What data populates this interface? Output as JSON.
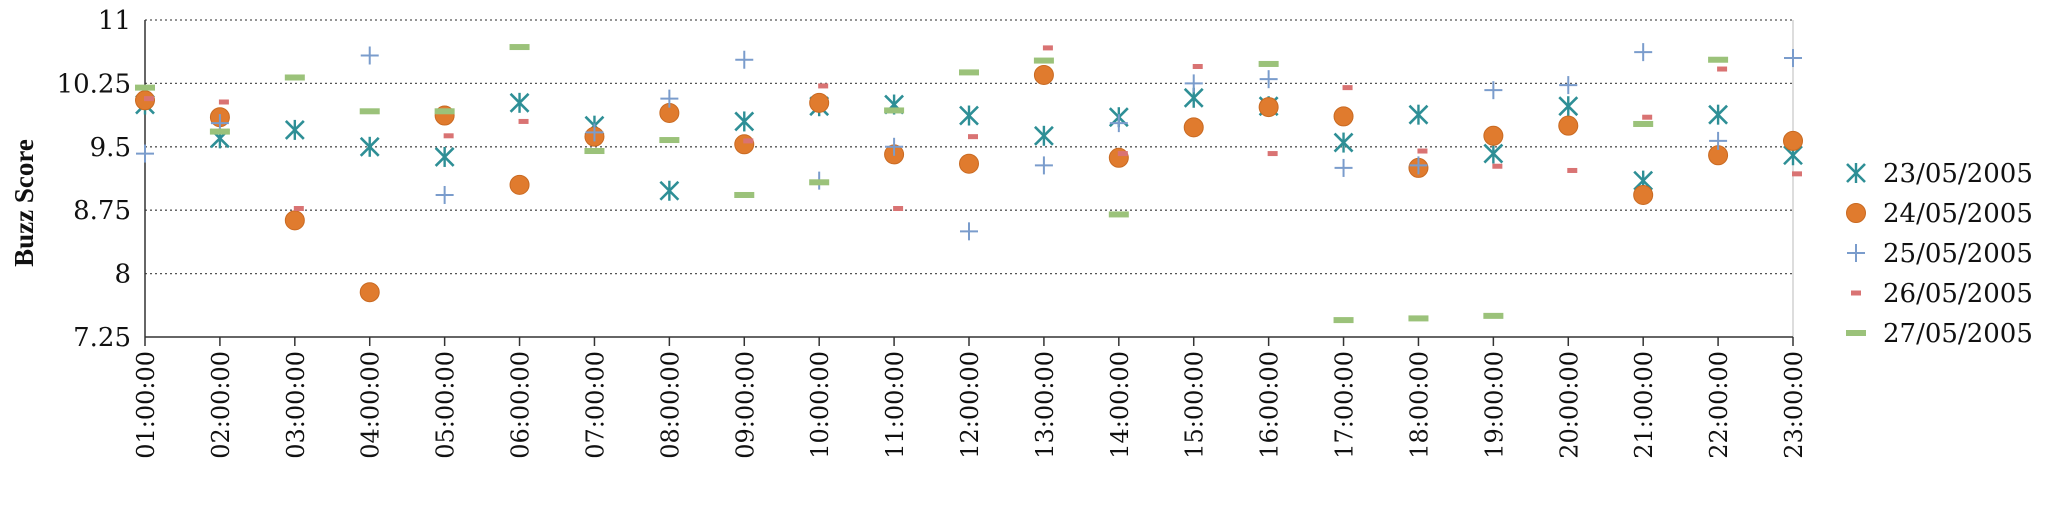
{
  "chart_data": {
    "type": "scatter",
    "ylabel": "Buzz Score",
    "xlabel": "",
    "ylim": [
      7.25,
      11
    ],
    "yticks": [
      "7.25",
      "8",
      "8.75",
      "9.5",
      "10.25",
      "11"
    ],
    "categories": [
      "01:00:00",
      "02:00:00",
      "03:00:00",
      "04:00:00",
      "05:00:00",
      "06:00:00",
      "07:00:00",
      "08:00:00",
      "09:00:00",
      "10:00:00",
      "11:00:00",
      "12:00:00",
      "13:00:00",
      "14:00:00",
      "15:00:00",
      "16:00:00",
      "17:00:00",
      "18:00:00",
      "19:00:00",
      "20:00:00",
      "21:00:00",
      "22:00:00",
      "23:00:00"
    ],
    "grid": "horizontal dotted",
    "legend_position": "right",
    "series": [
      {
        "name": "23/05/2005",
        "marker": "asterisk",
        "color": "#2e8f96",
        "values": [
          10.0,
          9.6,
          9.7,
          9.5,
          9.38,
          10.02,
          9.75,
          8.98,
          9.8,
          9.98,
          10.0,
          9.87,
          9.63,
          9.85,
          10.08,
          9.98,
          9.55,
          9.88,
          9.42,
          9.98,
          9.1,
          9.88,
          9.4
        ]
      },
      {
        "name": "24/05/2005",
        "marker": "circle",
        "color": "#e07b2e",
        "values": [
          10.05,
          9.85,
          8.63,
          7.78,
          9.87,
          9.05,
          9.62,
          9.9,
          9.53,
          10.02,
          9.41,
          9.3,
          10.35,
          9.37,
          9.73,
          9.97,
          9.86,
          9.25,
          9.63,
          9.75,
          8.93,
          9.4,
          9.57
        ]
      },
      {
        "name": "25/05/2005",
        "marker": "plus",
        "color": "#7a9ccc",
        "values": [
          9.42,
          9.78,
          null,
          10.58,
          8.93,
          null,
          9.67,
          10.07,
          10.53,
          9.1,
          9.5,
          8.5,
          9.28,
          9.78,
          10.25,
          10.3,
          9.25,
          9.28,
          10.17,
          10.23,
          10.62,
          9.57,
          10.55
        ]
      },
      {
        "name": "26/05/2005",
        "marker": "dash",
        "color": "#d97373",
        "values": [
          10.07,
          10.03,
          8.77,
          9.92,
          9.63,
          9.8,
          null,
          null,
          9.57,
          10.22,
          8.77,
          9.62,
          10.67,
          9.42,
          10.45,
          9.42,
          10.2,
          9.45,
          9.27,
          9.22,
          9.85,
          10.42,
          9.18
        ]
      },
      {
        "name": "27/05/2005",
        "marker": "wide-dash",
        "color": "#9bc27a",
        "values": [
          10.2,
          9.68,
          10.32,
          9.92,
          9.92,
          10.68,
          9.45,
          9.58,
          8.93,
          9.08,
          9.93,
          10.38,
          10.52,
          8.7,
          null,
          10.48,
          7.45,
          7.47,
          7.5,
          null,
          9.77,
          10.53,
          null
        ]
      }
    ]
  }
}
